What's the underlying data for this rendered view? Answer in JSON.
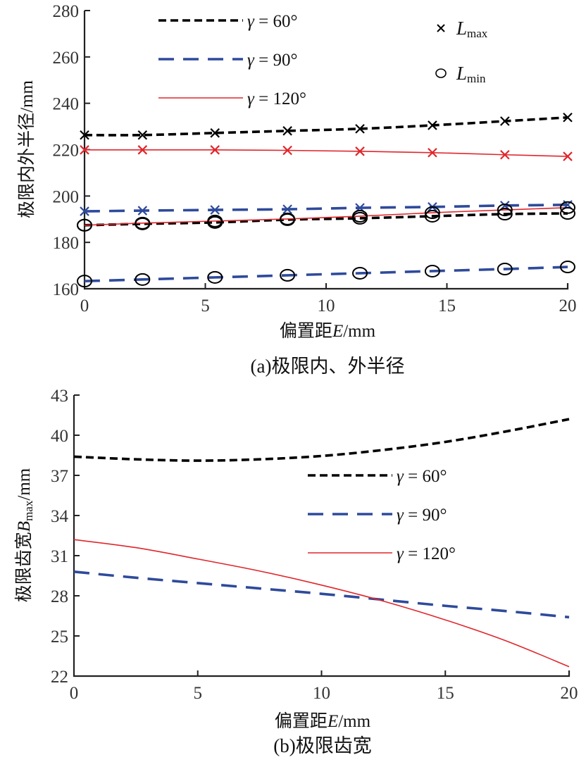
{
  "chart_data": [
    {
      "type": "line",
      "id": "a",
      "caption": "(a)极限内、外半径",
      "title": "",
      "xlabel": "偏置距E/mm",
      "xlabel_parts": [
        "偏置距",
        "E",
        "/mm"
      ],
      "ylabel": "极限内外半径/mm",
      "xlim": [
        0,
        20
      ],
      "ylim": [
        160,
        280
      ],
      "xticks": [
        0,
        5,
        10,
        15,
        20
      ],
      "yticks": [
        160,
        180,
        200,
        220,
        240,
        260,
        280
      ],
      "grid": false,
      "legend_placement": "top",
      "legend": [
        {
          "label": "γ = 60°",
          "color": "#000000",
          "style": "short-dash"
        },
        {
          "label": "γ = 90°",
          "color": "#2E4A9B",
          "style": "long-dash"
        },
        {
          "label": "γ = 120°",
          "color": "#E0262B",
          "style": "solid"
        }
      ],
      "marker_legend": [
        {
          "symbol": "×",
          "label_main": "L",
          "label_sub": "max"
        },
        {
          "symbol": "○",
          "label_main": "L",
          "label_sub": "min"
        }
      ],
      "x": [
        0,
        2.4,
        5.4,
        8.4,
        11.4,
        14.4,
        17.4,
        20
      ],
      "series": [
        {
          "name": "γ = 60° Lmax",
          "gamma": "60",
          "kind": "Lmax",
          "color": "#000000",
          "style": "short-dash",
          "marker": "x",
          "values": [
            226.3,
            226.3,
            227.2,
            228.1,
            229.0,
            230.5,
            232.3,
            233.9
          ]
        },
        {
          "name": "γ = 120° Lmax",
          "gamma": "120",
          "kind": "Lmax",
          "color": "#E0262B",
          "style": "solid",
          "marker": "x",
          "values": [
            219.9,
            219.9,
            219.9,
            219.7,
            219.3,
            218.7,
            217.8,
            217.1
          ]
        },
        {
          "name": "γ = 90° Lmax",
          "gamma": "90",
          "kind": "Lmax",
          "color": "#2E4A9B",
          "style": "long-dash",
          "marker": "x",
          "values": [
            193.4,
            193.7,
            194.0,
            194.3,
            194.9,
            195.3,
            195.9,
            196.2
          ]
        },
        {
          "name": "γ = 60° Lmin",
          "gamma": "60",
          "kind": "Lmin",
          "color": "#000000",
          "style": "short-dash",
          "marker": "o",
          "values": [
            187.4,
            188.0,
            188.6,
            189.8,
            190.4,
            191.3,
            192.2,
            192.5
          ]
        },
        {
          "name": "γ = 120° Lmin",
          "gamma": "120",
          "kind": "Lmin",
          "color": "#E0262B",
          "style": "solid",
          "marker": "o",
          "values": [
            187.4,
            188.3,
            189.2,
            190.1,
            191.3,
            192.8,
            194.0,
            195.0
          ]
        },
        {
          "name": "γ = 90° Lmin",
          "gamma": "90",
          "kind": "Lmin",
          "color": "#2E4A9B",
          "style": "long-dash",
          "marker": "o",
          "values": [
            163.3,
            164.0,
            164.9,
            165.8,
            166.7,
            167.6,
            168.5,
            169.4
          ]
        }
      ]
    },
    {
      "type": "line",
      "id": "b",
      "caption": "(b)极限齿宽",
      "title": "",
      "xlabel": "偏置距E/mm",
      "xlabel_parts": [
        "偏置距",
        "E",
        "/mm"
      ],
      "ylabel": "极限齿宽Bmax/mm",
      "ylabel_parts": [
        "极限齿宽",
        "B",
        "max",
        "/mm"
      ],
      "xlim": [
        0,
        20
      ],
      "ylim": [
        22,
        43
      ],
      "xticks": [
        0,
        5,
        10,
        15,
        20
      ],
      "yticks": [
        22,
        25,
        28,
        31,
        34,
        37,
        40,
        43
      ],
      "grid": false,
      "legend_placement": "center-right",
      "legend": [
        {
          "label": "γ = 60°",
          "color": "#000000",
          "style": "short-dash"
        },
        {
          "label": "γ = 90°",
          "color": "#2E4A9B",
          "style": "long-dash"
        },
        {
          "label": "γ = 120°",
          "color": "#E0262B",
          "style": "solid"
        }
      ],
      "x": [
        0,
        2.5,
        5,
        7.5,
        10,
        12.5,
        15,
        17.5,
        20
      ],
      "series": [
        {
          "name": "γ = 60°",
          "color": "#000000",
          "style": "short-dash",
          "values": [
            38.4,
            38.2,
            38.1,
            38.2,
            38.45,
            38.9,
            39.5,
            40.3,
            41.2
          ]
        },
        {
          "name": "γ = 90°",
          "color": "#2E4A9B",
          "style": "long-dash",
          "values": [
            29.8,
            29.35,
            28.95,
            28.55,
            28.15,
            27.7,
            27.25,
            26.85,
            26.4
          ]
        },
        {
          "name": "γ = 120°",
          "color": "#E0262B",
          "style": "solid",
          "values": [
            32.2,
            31.6,
            30.75,
            29.85,
            28.8,
            27.6,
            26.2,
            24.6,
            22.7
          ]
        }
      ]
    }
  ]
}
